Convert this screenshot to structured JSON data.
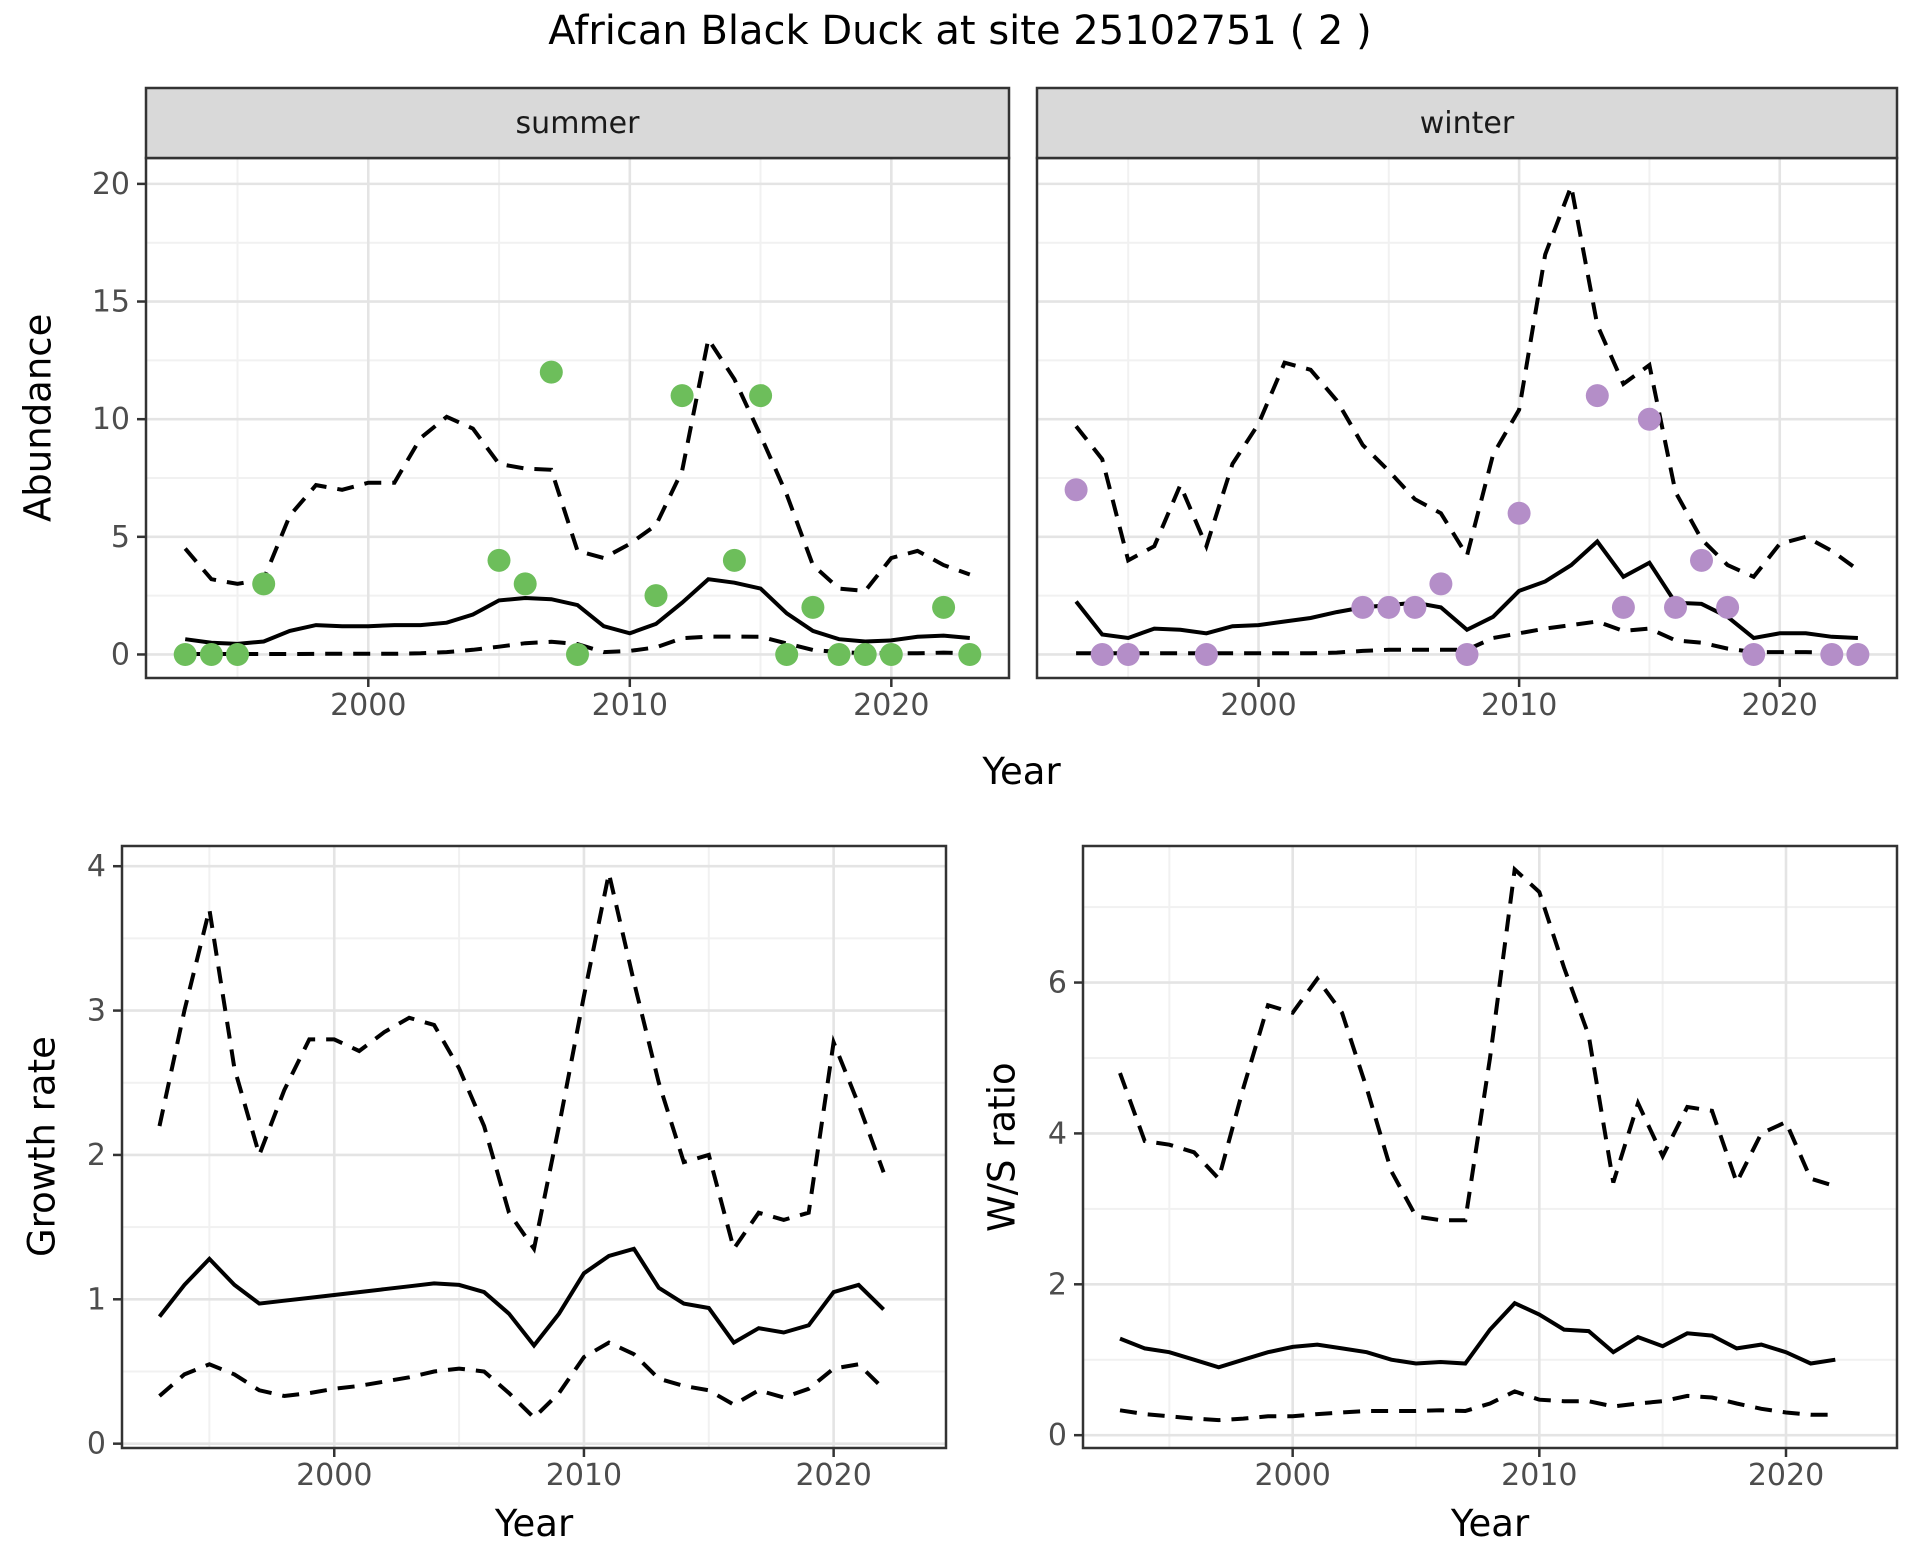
{
  "title": "African Black Duck at site 25102751 ( 2 )",
  "axis_titles": {
    "x": "Year",
    "abundance": "Abundance",
    "growth_rate": "Growth rate",
    "ws_ratio": "W/S ratio"
  },
  "style": {
    "summer_point_color": "#6DBE5B",
    "winter_point_color": "#B48EC8",
    "line_color": "#000000",
    "strip_fill": "#D9D9D9",
    "panel_border": "#333333",
    "grid_major": "#E4E4E4",
    "grid_minor": "#F1F1F1",
    "tick_label_color": "#4D4D4D"
  },
  "chart_data": [
    {
      "type": "line",
      "id": "abundance-summer",
      "facet_label": "summer",
      "xlabel": "Year",
      "ylabel": "Abundance",
      "xlim": [
        1991.5,
        2024.5
      ],
      "ylim": [
        -1.0,
        21.1
      ],
      "x_major_ticks": [
        2000,
        2010,
        2020
      ],
      "x_tick_labels": [
        "2000",
        "2010",
        "2020"
      ],
      "x_minor_ticks": [
        1995,
        2005,
        2015
      ],
      "y_major_ticks": [
        0,
        5,
        10,
        15,
        20
      ],
      "y_tick_labels": [
        "0",
        "5",
        "10",
        "15",
        "20"
      ],
      "y_minor_ticks": [
        2.5,
        7.5,
        12.5,
        17.5
      ],
      "grid": true,
      "legend": "none",
      "years": [
        1993,
        1994,
        1995,
        1996,
        1997,
        1998,
        1999,
        2000,
        2001,
        2002,
        2003,
        2004,
        2005,
        2006,
        2007,
        2008,
        2009,
        2010,
        2011,
        2012,
        2013,
        2014,
        2015,
        2016,
        2017,
        2018,
        2019,
        2020,
        2021,
        2022,
        2023
      ],
      "series": [
        {
          "name": "fitted abundance",
          "style": "solid",
          "values": [
            0.65,
            0.5,
            0.45,
            0.55,
            1.0,
            1.25,
            1.2,
            1.2,
            1.25,
            1.25,
            1.35,
            1.7,
            2.3,
            2.4,
            2.35,
            2.1,
            1.2,
            0.9,
            1.3,
            2.2,
            3.2,
            3.05,
            2.8,
            1.75,
            1.0,
            0.65,
            0.55,
            0.6,
            0.75,
            0.8,
            0.7
          ]
        },
        {
          "name": "upper 95% CI",
          "style": "dashed",
          "values": [
            4.5,
            3.2,
            3.0,
            3.2,
            5.9,
            7.2,
            7.0,
            7.3,
            7.3,
            9.2,
            10.1,
            9.6,
            8.1,
            7.9,
            7.85,
            4.4,
            4.1,
            4.7,
            5.5,
            7.8,
            13.4,
            11.7,
            9.3,
            6.8,
            3.8,
            2.8,
            2.7,
            4.1,
            4.4,
            3.8,
            3.4
          ]
        },
        {
          "name": "lower 95% CI",
          "style": "dashed",
          "values": [
            0.02,
            0.02,
            0.02,
            0.02,
            0.02,
            0.03,
            0.03,
            0.03,
            0.03,
            0.05,
            0.1,
            0.2,
            0.33,
            0.48,
            0.54,
            0.44,
            0.1,
            0.15,
            0.3,
            0.69,
            0.76,
            0.76,
            0.75,
            0.47,
            0.19,
            0.1,
            0.05,
            0.05,
            0.05,
            0.08,
            0.05
          ]
        }
      ],
      "points": {
        "name": "observed summer counts",
        "color": "#6DBE5B",
        "xy": [
          [
            1993,
            0
          ],
          [
            1994,
            0
          ],
          [
            1995,
            0
          ],
          [
            1996,
            3
          ],
          [
            2005,
            4
          ],
          [
            2006,
            3
          ],
          [
            2007,
            12
          ],
          [
            2008,
            0
          ],
          [
            2011,
            2.5
          ],
          [
            2012,
            11
          ],
          [
            2014,
            4
          ],
          [
            2015,
            11
          ],
          [
            2016,
            0
          ],
          [
            2017,
            2
          ],
          [
            2018,
            0
          ],
          [
            2019,
            0
          ],
          [
            2020,
            0
          ],
          [
            2022,
            2
          ],
          [
            2023,
            0
          ]
        ]
      }
    },
    {
      "type": "line",
      "id": "abundance-winter",
      "facet_label": "winter",
      "xlabel": "Year",
      "ylabel": "Abundance",
      "xlim": [
        1991.5,
        2024.5
      ],
      "ylim": [
        -1.0,
        21.1
      ],
      "x_major_ticks": [
        2000,
        2010,
        2020
      ],
      "x_tick_labels": [
        "2000",
        "2010",
        "2020"
      ],
      "x_minor_ticks": [
        1995,
        2005,
        2015
      ],
      "y_major_ticks": [
        0,
        5,
        10,
        15,
        20
      ],
      "y_tick_labels": [
        "0",
        "5",
        "10",
        "15",
        "20"
      ],
      "y_minor_ticks": [
        2.5,
        7.5,
        12.5,
        17.5
      ],
      "grid": true,
      "legend": "none",
      "years": [
        1993,
        1994,
        1995,
        1996,
        1997,
        1998,
        1999,
        2000,
        2001,
        2002,
        2003,
        2004,
        2005,
        2006,
        2007,
        2008,
        2009,
        2010,
        2011,
        2012,
        2013,
        2014,
        2015,
        2016,
        2017,
        2018,
        2019,
        2020,
        2021,
        2022,
        2023
      ],
      "series": [
        {
          "name": "fitted abundance",
          "style": "solid",
          "values": [
            2.25,
            0.85,
            0.7,
            1.1,
            1.05,
            0.9,
            1.2,
            1.25,
            1.4,
            1.55,
            1.8,
            2.0,
            2.1,
            2.2,
            2.0,
            1.05,
            1.6,
            2.7,
            3.1,
            3.8,
            4.8,
            3.3,
            3.9,
            2.2,
            2.15,
            1.6,
            0.7,
            0.9,
            0.9,
            0.75,
            0.7
          ]
        },
        {
          "name": "upper 95% CI",
          "style": "dashed",
          "values": [
            9.7,
            8.3,
            4.0,
            4.6,
            7.2,
            4.6,
            8.1,
            9.8,
            12.4,
            12.1,
            10.8,
            8.9,
            7.8,
            6.6,
            6.0,
            4.2,
            8.5,
            10.4,
            17.0,
            19.9,
            14.0,
            11.5,
            12.3,
            6.9,
            4.9,
            3.8,
            3.3,
            4.7,
            5.0,
            4.4,
            3.6
          ]
        },
        {
          "name": "lower 95% CI",
          "style": "dashed",
          "values": [
            0.05,
            0.05,
            0.05,
            0.05,
            0.05,
            0.05,
            0.05,
            0.05,
            0.05,
            0.05,
            0.08,
            0.15,
            0.2,
            0.2,
            0.2,
            0.2,
            0.7,
            0.9,
            1.1,
            1.25,
            1.4,
            1.0,
            1.1,
            0.6,
            0.5,
            0.25,
            0.1,
            0.1,
            0.1,
            0.08,
            0.08
          ]
        }
      ],
      "points": {
        "name": "observed winter counts",
        "color": "#B48EC8",
        "xy": [
          [
            1993,
            7
          ],
          [
            1994,
            0
          ],
          [
            1995,
            0
          ],
          [
            1998,
            0
          ],
          [
            2004,
            2
          ],
          [
            2005,
            2
          ],
          [
            2006,
            2
          ],
          [
            2007,
            3
          ],
          [
            2008,
            0
          ],
          [
            2010,
            6
          ],
          [
            2013,
            11
          ],
          [
            2014,
            2
          ],
          [
            2015,
            10
          ],
          [
            2016,
            2
          ],
          [
            2017,
            4
          ],
          [
            2018,
            2
          ],
          [
            2019,
            0
          ],
          [
            2022,
            0
          ],
          [
            2023,
            0
          ]
        ]
      }
    },
    {
      "type": "line",
      "id": "growth-rate",
      "xlabel": "Year",
      "ylabel": "Growth rate",
      "xlim": [
        1991.5,
        2024.5
      ],
      "ylim": [
        -0.03,
        4.14
      ],
      "x_major_ticks": [
        2000,
        2010,
        2020
      ],
      "x_tick_labels": [
        "2000",
        "2010",
        "2020"
      ],
      "x_minor_ticks": [
        1995,
        2005,
        2015
      ],
      "y_major_ticks": [
        0,
        1,
        2,
        3,
        4
      ],
      "y_tick_labels": [
        "0",
        "1",
        "2",
        "3",
        "4"
      ],
      "y_minor_ticks": [
        0.5,
        1.5,
        2.5,
        3.5
      ],
      "grid": true,
      "legend": "none",
      "years": [
        1993,
        1994,
        1995,
        1996,
        1997,
        1998,
        1999,
        2000,
        2001,
        2002,
        2003,
        2004,
        2005,
        2006,
        2007,
        2008,
        2009,
        2010,
        2011,
        2012,
        2013,
        2014,
        2015,
        2016,
        2017,
        2018,
        2019,
        2020,
        2021,
        2022
      ],
      "series": [
        {
          "name": "growth rate",
          "style": "solid",
          "values": [
            0.88,
            1.1,
            1.28,
            1.1,
            0.97,
            0.99,
            1.01,
            1.03,
            1.05,
            1.07,
            1.09,
            1.11,
            1.1,
            1.05,
            0.9,
            0.68,
            0.9,
            1.18,
            1.3,
            1.35,
            1.08,
            0.97,
            0.94,
            0.7,
            0.8,
            0.77,
            0.82,
            1.05,
            1.1,
            0.93
          ]
        },
        {
          "name": "upper 95% CI",
          "style": "dashed",
          "values": [
            2.2,
            3.0,
            3.7,
            2.6,
            2.0,
            2.45,
            2.8,
            2.8,
            2.72,
            2.85,
            2.95,
            2.9,
            2.6,
            2.2,
            1.6,
            1.35,
            2.2,
            3.1,
            3.95,
            3.2,
            2.5,
            1.95,
            2.0,
            1.35,
            1.6,
            1.55,
            1.6,
            2.78,
            2.35,
            1.88
          ]
        },
        {
          "name": "lower 95% CI",
          "style": "dashed",
          "values": [
            0.33,
            0.48,
            0.55,
            0.48,
            0.37,
            0.33,
            0.35,
            0.38,
            0.4,
            0.43,
            0.46,
            0.5,
            0.52,
            0.5,
            0.35,
            0.18,
            0.35,
            0.6,
            0.7,
            0.62,
            0.45,
            0.4,
            0.37,
            0.27,
            0.37,
            0.32,
            0.38,
            0.52,
            0.55,
            0.38
          ]
        }
      ]
    },
    {
      "type": "line",
      "id": "ws-ratio",
      "xlabel": "Year",
      "ylabel": "W/S ratio",
      "xlim": [
        1991.5,
        2024.5
      ],
      "ylim": [
        -0.17,
        7.81
      ],
      "x_major_ticks": [
        2000,
        2010,
        2020
      ],
      "x_tick_labels": [
        "2000",
        "2010",
        "2020"
      ],
      "x_minor_ticks": [
        1995,
        2005,
        2015
      ],
      "y_major_ticks": [
        0,
        2,
        4,
        6
      ],
      "y_tick_labels": [
        "0",
        "2",
        "4",
        "6"
      ],
      "y_minor_ticks": [
        1,
        3,
        5,
        7
      ],
      "grid": true,
      "legend": "none",
      "years": [
        1993,
        1994,
        1995,
        1996,
        1997,
        1998,
        1999,
        2000,
        2001,
        2002,
        2003,
        2004,
        2005,
        2006,
        2007,
        2008,
        2009,
        2010,
        2011,
        2012,
        2013,
        2014,
        2015,
        2016,
        2017,
        2018,
        2019,
        2020,
        2021,
        2022
      ],
      "series": [
        {
          "name": "winter/summer ratio",
          "style": "solid",
          "values": [
            1.28,
            1.15,
            1.1,
            1.0,
            0.9,
            1.0,
            1.1,
            1.17,
            1.2,
            1.15,
            1.1,
            1.0,
            0.95,
            0.97,
            0.95,
            1.4,
            1.75,
            1.6,
            1.4,
            1.38,
            1.1,
            1.3,
            1.18,
            1.35,
            1.32,
            1.15,
            1.2,
            1.1,
            0.95,
            1.0
          ]
        },
        {
          "name": "upper 95% CI",
          "style": "dashed",
          "values": [
            4.8,
            3.9,
            3.85,
            3.75,
            3.4,
            4.6,
            5.7,
            5.6,
            6.05,
            5.6,
            4.6,
            3.5,
            2.9,
            2.85,
            2.85,
            5.0,
            7.5,
            7.2,
            6.2,
            5.3,
            3.35,
            4.4,
            3.7,
            4.35,
            4.3,
            3.35,
            4.0,
            4.15,
            3.4,
            3.3
          ]
        },
        {
          "name": "lower 95% CI",
          "style": "dashed",
          "values": [
            0.33,
            0.28,
            0.25,
            0.22,
            0.2,
            0.22,
            0.25,
            0.25,
            0.28,
            0.3,
            0.32,
            0.32,
            0.32,
            0.33,
            0.32,
            0.42,
            0.58,
            0.47,
            0.45,
            0.45,
            0.38,
            0.42,
            0.45,
            0.52,
            0.5,
            0.42,
            0.35,
            0.3,
            0.27,
            0.27
          ]
        }
      ]
    }
  ]
}
